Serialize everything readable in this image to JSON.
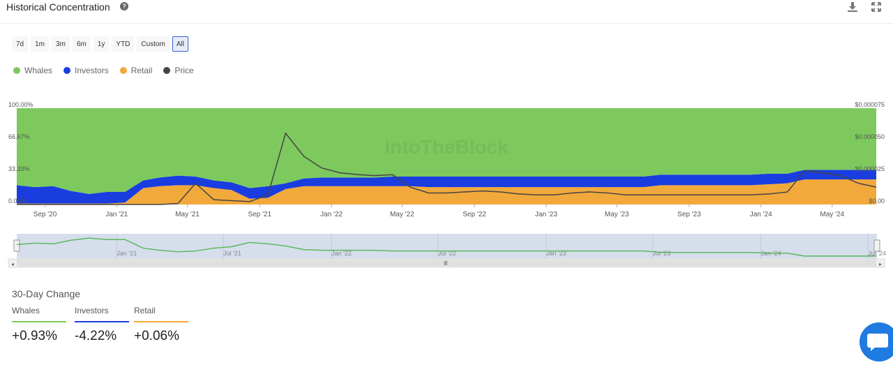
{
  "header": {
    "title": "Historical Concentration"
  },
  "ranges": [
    "7d",
    "1m",
    "3m",
    "6m",
    "1y",
    "YTD",
    "Custom",
    "All"
  ],
  "active_range": "All",
  "legend": [
    {
      "label": "Whales",
      "color": "#7dc95e"
    },
    {
      "label": "Investors",
      "color": "#1a3de0"
    },
    {
      "label": "Retail",
      "color": "#f2a93b"
    },
    {
      "label": "Price",
      "color": "#444444"
    }
  ],
  "watermark": "IntoTheBlock",
  "chart_data": {
    "type": "area",
    "stacked": true,
    "x_dates": [
      "2020-07-15",
      "2020-08-15",
      "2020-09-15",
      "2020-10-15",
      "2020-11-15",
      "2020-12-15",
      "2021-01-15",
      "2021-02-15",
      "2021-03-15",
      "2021-04-15",
      "2021-05-15",
      "2021-06-15",
      "2021-07-15",
      "2021-08-15",
      "2021-09-15",
      "2021-10-15",
      "2021-11-15",
      "2021-12-15",
      "2022-01-15",
      "2022-02-15",
      "2022-03-15",
      "2022-04-15",
      "2022-05-15",
      "2022-06-15",
      "2022-07-15",
      "2022-08-15",
      "2022-09-15",
      "2022-10-15",
      "2022-11-15",
      "2022-12-15",
      "2023-01-15",
      "2023-02-15",
      "2023-03-15",
      "2023-04-15",
      "2023-05-15",
      "2023-06-15",
      "2023-07-15",
      "2023-08-15",
      "2023-09-15",
      "2023-10-15",
      "2023-11-15",
      "2023-12-15",
      "2024-01-15",
      "2024-02-15",
      "2024-03-15",
      "2024-04-15",
      "2024-05-15",
      "2024-06-15",
      "2024-07-15"
    ],
    "series": [
      {
        "name": "Retail",
        "color": "#f2a93b",
        "values": [
          1,
          1,
          1,
          1,
          1,
          1,
          2,
          17,
          19,
          20,
          20,
          17,
          15,
          6,
          7,
          16,
          19,
          19,
          19,
          19,
          19,
          19,
          19,
          18,
          18,
          18,
          18,
          18,
          18,
          18,
          18,
          18,
          18,
          18,
          18,
          18,
          20,
          20,
          20,
          20,
          20,
          20,
          21,
          22,
          26,
          26,
          26,
          26,
          26
        ]
      },
      {
        "name": "Investors",
        "color": "#1a3de0",
        "values": [
          19,
          17,
          18,
          13,
          10,
          12,
          11,
          8,
          9,
          10,
          9,
          8,
          8,
          11,
          12,
          6,
          8,
          9,
          9,
          9,
          9,
          10,
          10,
          11,
          11,
          11,
          11,
          11,
          11,
          11,
          11,
          11,
          11,
          11,
          11,
          11,
          11,
          11,
          11,
          11,
          11,
          11,
          11,
          10,
          10,
          10,
          10,
          10,
          10
        ]
      },
      {
        "name": "Whales",
        "color": "#7dc95e",
        "values": [
          80,
          82,
          81,
          86,
          89,
          87,
          87,
          75,
          72,
          70,
          71,
          75,
          77,
          83,
          81,
          78,
          73,
          72,
          72,
          72,
          72,
          71,
          71,
          71,
          71,
          71,
          71,
          71,
          71,
          71,
          71,
          71,
          71,
          71,
          71,
          71,
          69,
          69,
          69,
          69,
          69,
          69,
          68,
          68,
          64,
          64,
          64,
          64,
          64
        ]
      }
    ],
    "price": {
      "name": "Price",
      "color": "#444444",
      "values": [
        0,
        0,
        0,
        0,
        0,
        0,
        0,
        0,
        0,
        1,
        22,
        5,
        4,
        3,
        10,
        74,
        50,
        38,
        33,
        31,
        30,
        31,
        18,
        12,
        12,
        13,
        14,
        13,
        11,
        10,
        10,
        12,
        13,
        12,
        10,
        10,
        10,
        10,
        10,
        10,
        10,
        10,
        11,
        13,
        35,
        33,
        30,
        22,
        18
      ]
    },
    "y_left_ticks": [
      "0.00%",
      "33.33%",
      "66.67%",
      "100.00%"
    ],
    "y_right_ticks": [
      "$0.00",
      "$0.000025",
      "$0.000050",
      "$0.000075"
    ],
    "x_ticks": [
      "Sep '20",
      "Jan '21",
      "May '21",
      "Sep '21",
      "Jan '22",
      "May '22",
      "Sep '22",
      "Jan '23",
      "May '23",
      "Sep '23",
      "Jan '24",
      "May '24"
    ],
    "ylim": [
      0,
      100
    ],
    "navigator_ticks": [
      "Jan '21",
      "Jul '21",
      "Jan '22",
      "Jul '22",
      "Jan '23",
      "Jul '23",
      "Jan '24",
      "Jul '24"
    ]
  },
  "thirty_day_change": {
    "title": "30-Day Change",
    "items": [
      {
        "label": "Whales",
        "value": "+0.93%",
        "color": "#7dc95e"
      },
      {
        "label": "Investors",
        "value": "-4.22%",
        "color": "#1a3de0"
      },
      {
        "label": "Retail",
        "value": "+0.06%",
        "color": "#f2a93b"
      }
    ]
  }
}
